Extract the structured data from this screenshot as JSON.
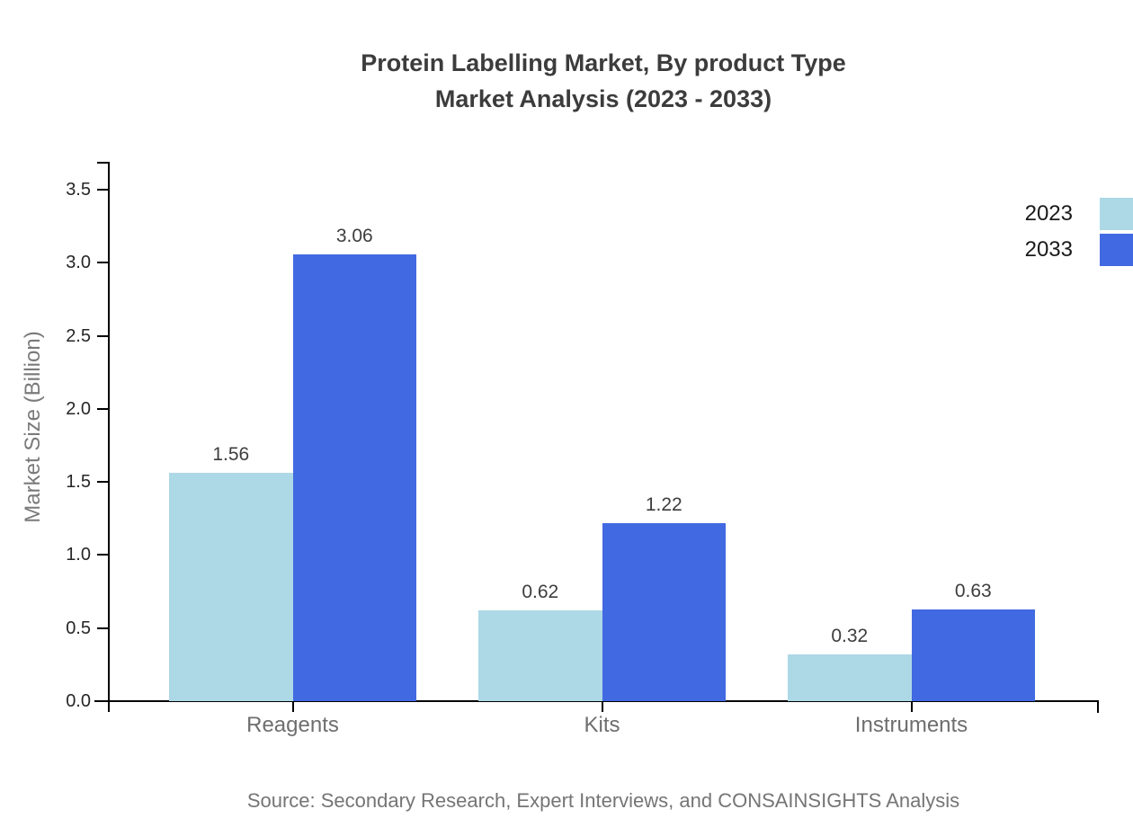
{
  "title": {
    "line1": "Protein Labelling Market, By product Type",
    "line2": "Market Analysis (2023 - 2033)"
  },
  "source": "Source: Secondary Research, Expert Interviews, and CONSAINSIGHTS Analysis",
  "legend": {
    "items": [
      {
        "label": "2023",
        "color": "#ADD8E6"
      },
      {
        "label": "2033",
        "color": "#4169E1"
      }
    ]
  },
  "chart_data": {
    "type": "bar",
    "title": "Protein Labelling Market, By product Type — Market Analysis (2023 - 2033)",
    "categories": [
      "Reagents",
      "Kits",
      "Instruments"
    ],
    "series": [
      {
        "name": "2023",
        "color": "#ADD8E6",
        "values": [
          1.56,
          0.62,
          0.32
        ]
      },
      {
        "name": "2033",
        "color": "#4169E1",
        "values": [
          3.06,
          1.22,
          0.63
        ]
      }
    ],
    "xlabel": "",
    "ylabel": "Market Size (Billion)",
    "ylim": [
      0,
      3.5
    ],
    "yticks": [
      "0.0",
      "0.5",
      "1.0",
      "1.5",
      "2.0",
      "2.5",
      "3.0",
      "3.5"
    ],
    "grid": false,
    "legend_position": "upper-right-outside",
    "value_labels": true
  },
  "colors": {
    "title": "#3c3c3c",
    "axis": "#000000",
    "tick_label": "#262626",
    "category_label": "#6e6e6e",
    "value_label": "#3d3d3d",
    "ylabel": "#7a7a7a",
    "source": "#757575"
  }
}
